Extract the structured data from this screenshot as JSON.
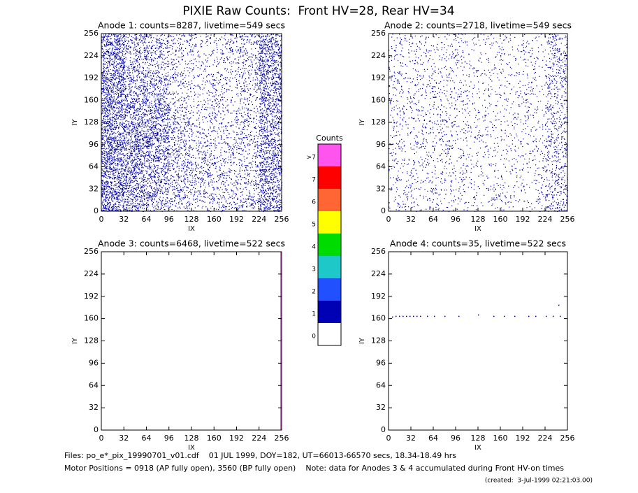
{
  "title": "PIXIE Raw Counts:  Front HV=28, Rear HV=34",
  "chart_data": [
    {
      "type": "density",
      "title": "Anode 1: counts=8287, livetime=549 secs",
      "xlabel": "IX",
      "ylabel": "IY",
      "xlim": [
        0,
        256
      ],
      "ylim": [
        0,
        256
      ],
      "xticks": [
        0,
        32,
        64,
        96,
        128,
        160,
        192,
        224,
        256
      ],
      "yticks": [
        0,
        32,
        64,
        96,
        128,
        160,
        192,
        224,
        256
      ],
      "color": "#0000aa",
      "cell_counts": [
        [
          260,
          150,
          120,
          80,
          60,
          70,
          90,
          220
        ],
        [
          240,
          140,
          110,
          70,
          50,
          60,
          90,
          230
        ],
        [
          250,
          170,
          150,
          70,
          50,
          60,
          80,
          210
        ],
        [
          260,
          200,
          210,
          90,
          60,
          60,
          80,
          190
        ],
        [
          270,
          240,
          240,
          110,
          70,
          70,
          80,
          190
        ],
        [
          270,
          230,
          200,
          120,
          90,
          80,
          80,
          200
        ],
        [
          270,
          220,
          170,
          110,
          100,
          80,
          90,
          210
        ],
        [
          280,
          200,
          160,
          100,
          80,
          80,
          100,
          230
        ]
      ]
    },
    {
      "type": "density",
      "title": "Anode 2: counts=2718, livetime=549 secs",
      "xlabel": "IX",
      "ylabel": "IY",
      "xlim": [
        0,
        256
      ],
      "ylim": [
        0,
        256
      ],
      "xticks": [
        0,
        32,
        64,
        96,
        128,
        160,
        192,
        224,
        256
      ],
      "yticks": [
        0,
        32,
        64,
        96,
        128,
        160,
        192,
        224,
        256
      ],
      "color": "#0000aa",
      "cell_counts": [
        [
          45,
          40,
          40,
          35,
          30,
          30,
          35,
          90
        ],
        [
          45,
          40,
          40,
          35,
          30,
          30,
          35,
          85
        ],
        [
          45,
          45,
          45,
          35,
          30,
          30,
          35,
          80
        ],
        [
          45,
          45,
          50,
          35,
          30,
          30,
          35,
          80
        ],
        [
          40,
          45,
          50,
          35,
          30,
          30,
          35,
          80
        ],
        [
          40,
          45,
          45,
          35,
          30,
          30,
          35,
          85
        ],
        [
          40,
          40,
          40,
          35,
          30,
          30,
          35,
          90
        ],
        [
          40,
          40,
          40,
          35,
          30,
          30,
          35,
          100
        ]
      ]
    },
    {
      "type": "line",
      "title": "Anode 3: counts=6468, livetime=522 secs",
      "xlabel": "IX",
      "ylabel": "IY",
      "xlim": [
        0,
        256
      ],
      "ylim": [
        0,
        256
      ],
      "xticks": [
        0,
        32,
        64,
        96,
        128,
        160,
        192,
        224,
        256
      ],
      "yticks": [
        0,
        32,
        64,
        96,
        128,
        160,
        192,
        224,
        256
      ],
      "color": "#ff55ee",
      "x": [
        255,
        255
      ],
      "values": [
        0,
        256
      ]
    },
    {
      "type": "scatter",
      "title": "Anode 4: counts=35, livetime=522 secs",
      "xlabel": "IX",
      "ylabel": "IY",
      "xlim": [
        0,
        256
      ],
      "ylim": [
        0,
        256
      ],
      "xticks": [
        0,
        32,
        64,
        96,
        128,
        160,
        192,
        224,
        256
      ],
      "yticks": [
        0,
        32,
        64,
        96,
        128,
        160,
        192,
        224,
        256
      ],
      "color": "#000080",
      "x": [
        5,
        10,
        15,
        20,
        25,
        30,
        35,
        40,
        45,
        55,
        65,
        80,
        100,
        128,
        150,
        165,
        180,
        200,
        210,
        225,
        235,
        243,
        245
      ],
      "values": [
        163,
        164,
        164,
        164,
        164,
        164,
        164,
        164,
        164,
        164,
        164,
        164,
        164,
        166,
        164,
        164,
        164,
        164,
        164,
        164,
        164,
        180,
        164
      ]
    }
  ],
  "colorbar": {
    "title": "Counts",
    "labels": [
      "0",
      "1",
      "2",
      "3",
      "4",
      "5",
      "6",
      "7",
      ">7"
    ],
    "colors": [
      "#ffffff",
      "#0000b4",
      "#2050ff",
      "#1ec8c8",
      "#00dc00",
      "#ffff00",
      "#ff6633",
      "#ff0000",
      "#ff55ee"
    ]
  },
  "footer": [
    "Files: po_e*_pix_19990701_v01.cdf    01 JUL 1999, DOY=182, UT=66013-66570 secs, 18.34-18.49 hrs",
    "Motor Positions = 0918 (AP fully open), 3560 (BP fully open)    Note: data for Anodes 3 & 4 accumulated during Front HV-on times",
    "(created:  3-Jul-1999 02:21:03.00)"
  ]
}
